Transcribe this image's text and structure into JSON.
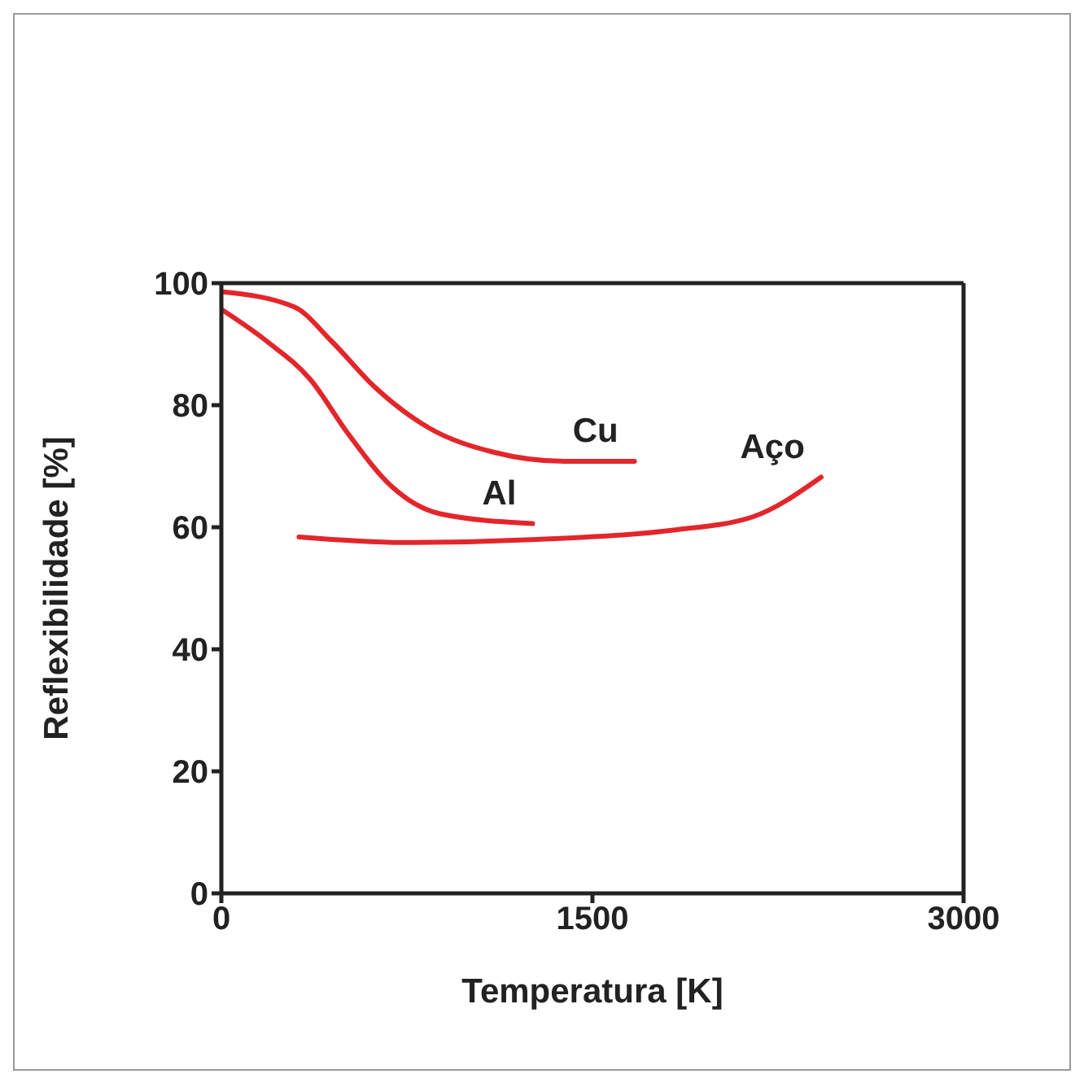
{
  "chart_data": {
    "type": "line",
    "xlabel": "Temperatura [K]",
    "ylabel": "Reflexibilidade [%]",
    "xlim": [
      0,
      3000
    ],
    "xticks": [
      0,
      1500,
      3000
    ],
    "ylim": [
      0,
      100
    ],
    "yticks": [
      0,
      20,
      40,
      60,
      80,
      100
    ],
    "marker": "none",
    "line_style": "solid",
    "series": [
      {
        "name": "Cu",
        "color": "#e3262b",
        "x": [
          0,
          295,
          445,
          622,
          838,
          1100,
          1388,
          1670
        ],
        "values": [
          98.6,
          96.1,
          90.5,
          82.9,
          76.3,
          72.3,
          70.8,
          70.8
        ]
      },
      {
        "name": "Al",
        "color": "#e3262b",
        "x": [
          0,
          183,
          360,
          511,
          688,
          884,
          1258
        ],
        "values": [
          95.7,
          90.5,
          84.2,
          75.4,
          66.7,
          62.2,
          60.6
        ]
      },
      {
        "name": "Aço",
        "color": "#e3262b",
        "x": [
          314,
          734,
          1277,
          1821,
          2148,
          2424
        ],
        "values": [
          58.4,
          57.5,
          58.0,
          59.5,
          61.7,
          68.2
        ]
      }
    ]
  }
}
